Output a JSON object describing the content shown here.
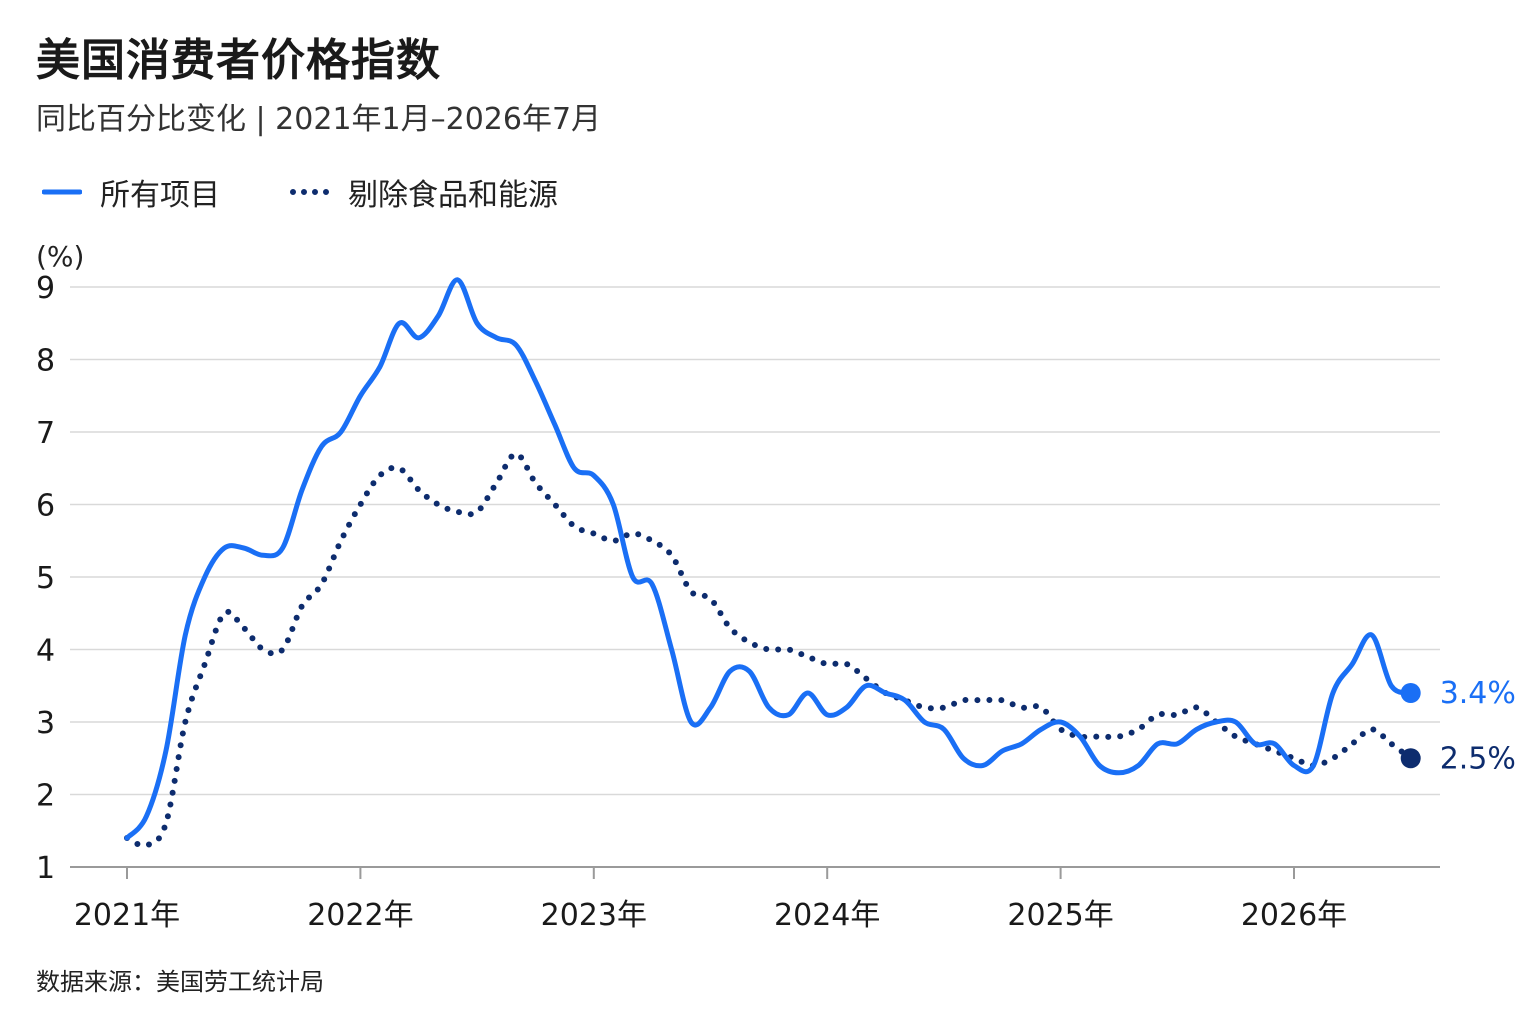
{
  "title": "美国消费者价格指数",
  "subtitle": "同比百分比变化 | 2021年1月–2026年7月",
  "unit_label": "(%)",
  "source": "数据来源：美国劳工统计局",
  "colors": {
    "all_items": "#1a6ff5",
    "core": "#0d2c6e",
    "grid": "#d9d9d9",
    "axis": "#9a9a9a"
  },
  "chart_data": {
    "type": "line",
    "title": "美国消费者价格指数",
    "ylabel": "(%)",
    "ylim": [
      1,
      9
    ],
    "yticks": [
      1,
      2,
      3,
      4,
      5,
      6,
      7,
      8,
      9
    ],
    "xticks": [
      "2021年",
      "2022年",
      "2023年",
      "2024年",
      "2025年",
      "2026年"
    ],
    "x_start": "2021-01",
    "legend_position": "top-left",
    "grid": true,
    "series": [
      {
        "name": "所有项目",
        "style": "solid",
        "end_label": "3.4%",
        "values": [
          1.4,
          1.7,
          2.6,
          4.2,
          5.0,
          5.4,
          5.4,
          5.3,
          5.4,
          6.2,
          6.8,
          7.0,
          7.5,
          7.9,
          8.5,
          8.3,
          8.6,
          9.1,
          8.5,
          8.3,
          8.2,
          7.7,
          7.1,
          6.5,
          6.4,
          6.0,
          5.0,
          4.9,
          4.0,
          3.0,
          3.2,
          3.7,
          3.7,
          3.2,
          3.1,
          3.4,
          3.1,
          3.2,
          3.5,
          3.4,
          3.3,
          3.0,
          2.9,
          2.5,
          2.4,
          2.6,
          2.7,
          2.9,
          3.0,
          2.8,
          2.4,
          2.3,
          2.4,
          2.7,
          2.7,
          2.9,
          3.0,
          3.0,
          2.7,
          2.7,
          2.4,
          2.4,
          3.4,
          3.8,
          4.2,
          3.5,
          3.4
        ]
      },
      {
        "name": "剔除食品和能源",
        "style": "dotted",
        "end_label": "2.5%",
        "values": [
          1.4,
          1.3,
          1.6,
          3.0,
          3.8,
          4.5,
          4.3,
          4.0,
          4.0,
          4.6,
          4.9,
          5.5,
          6.0,
          6.4,
          6.5,
          6.2,
          6.0,
          5.9,
          5.9,
          6.3,
          6.7,
          6.3,
          6.0,
          5.7,
          5.6,
          5.5,
          5.6,
          5.5,
          5.3,
          4.8,
          4.7,
          4.3,
          4.1,
          4.0,
          4.0,
          3.9,
          3.8,
          3.8,
          3.6,
          3.4,
          3.3,
          3.2,
          3.2,
          3.3,
          3.3,
          3.3,
          3.2,
          3.2,
          2.9,
          2.8,
          2.8,
          2.8,
          2.9,
          3.1,
          3.1,
          3.2,
          3.0,
          2.8,
          2.7,
          2.6,
          2.5,
          2.4,
          2.5,
          2.7,
          2.9,
          2.7,
          2.5
        ]
      }
    ]
  }
}
